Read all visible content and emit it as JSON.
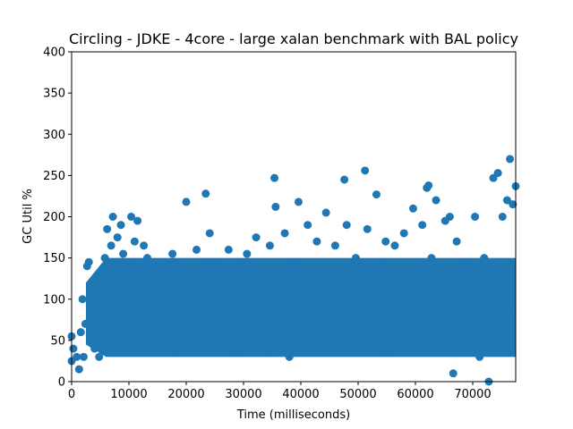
{
  "chart_data": {
    "type": "scatter",
    "title": "Circling - JDKE - 4core -  large xalan benchmark with BAL policy",
    "xlabel": "Time (milliseconds)",
    "ylabel": "GC Util %",
    "xlim": [
      0,
      77500
    ],
    "ylim": [
      0,
      400
    ],
    "xticks": [
      0,
      10000,
      20000,
      30000,
      40000,
      50000,
      60000,
      70000
    ],
    "xtick_labels": [
      "0",
      "10000",
      "20000",
      "30000",
      "40000",
      "50000",
      "60000",
      "70000"
    ],
    "yticks": [
      0,
      50,
      100,
      150,
      200,
      250,
      300,
      350,
      400
    ],
    "ytick_labels": [
      "0",
      "50",
      "100",
      "150",
      "200",
      "250",
      "300",
      "350",
      "400"
    ],
    "grid": false,
    "marker_color": "#1f77b4",
    "series": [
      {
        "x": [
          0,
          0,
          300,
          900,
          1300,
          1600,
          1900,
          2100,
          2400,
          2700,
          3000,
          3300,
          3600,
          4000,
          4400,
          4800,
          5200,
          5500,
          5800,
          6200,
          6600,
          6900,
          7200,
          7600,
          8000,
          8300,
          8600,
          9000,
          9500,
          10000,
          10400,
          11000,
          11500,
          12000,
          12600,
          13200,
          13800,
          14500,
          15200,
          16000,
          16800,
          17600,
          18400,
          19200,
          20000,
          20900,
          21800,
          22600,
          23400,
          24100,
          24200,
          25000,
          25800,
          26600,
          27400,
          28200,
          29000,
          29800,
          30600,
          31400,
          32200,
          33000,
          33800,
          34600,
          35400,
          35600,
          36400,
          37200,
          38000,
          38800,
          39600,
          40400,
          41200,
          42000,
          42800,
          43600,
          44400,
          45200,
          46000,
          46800,
          47600,
          48000,
          48800,
          49600,
          50400,
          51200,
          51600,
          52400,
          53200,
          54000,
          54800,
          55600,
          56400,
          57200,
          58000,
          58800,
          59600,
          60400,
          61200,
          62000,
          62300,
          62800,
          63600,
          64400,
          65200,
          66000,
          66600,
          67200,
          68000,
          68800,
          69600,
          70400,
          71200,
          72000,
          72800,
          73600,
          74400,
          75200,
          76000,
          76500,
          77000,
          77500,
          3500,
          6500,
          9000,
          14000,
          21000,
          24000,
          29000,
          35500,
          38000,
          40000,
          45000,
          48000,
          53500,
          58000,
          62000,
          67500,
          73000,
          76000
        ],
        "y": [
          25,
          55,
          40,
          30,
          15,
          60,
          100,
          30,
          70,
          140,
          145,
          55,
          110,
          40,
          80,
          30,
          95,
          60,
          150,
          185,
          120,
          165,
          200,
          70,
          175,
          110,
          190,
          155,
          75,
          145,
          200,
          170,
          195,
          110,
          165,
          150,
          85,
          140,
          60,
          125,
          95,
          155,
          40,
          130,
          218,
          75,
          160,
          140,
          228,
          180,
          85,
          145,
          50,
          120,
          160,
          35,
          140,
          90,
          155,
          60,
          175,
          110,
          40,
          165,
          247,
          212,
          95,
          180,
          30,
          140,
          218,
          65,
          190,
          120,
          170,
          50,
          205,
          130,
          165,
          85,
          245,
          190,
          45,
          150,
          110,
          256,
          185,
          60,
          227,
          140,
          170,
          35,
          165,
          90,
          180,
          120,
          210,
          55,
          190,
          235,
          238,
          150,
          220,
          100,
          195,
          200,
          10,
          170,
          45,
          140,
          60,
          200,
          30,
          150,
          0,
          247,
          253,
          200,
          220,
          270,
          215,
          237,
          95,
          70,
          120,
          105,
          110,
          85,
          100,
          90,
          100,
          95,
          110,
          80,
          95,
          105,
          100,
          90,
          100,
          85
        ]
      }
    ]
  }
}
